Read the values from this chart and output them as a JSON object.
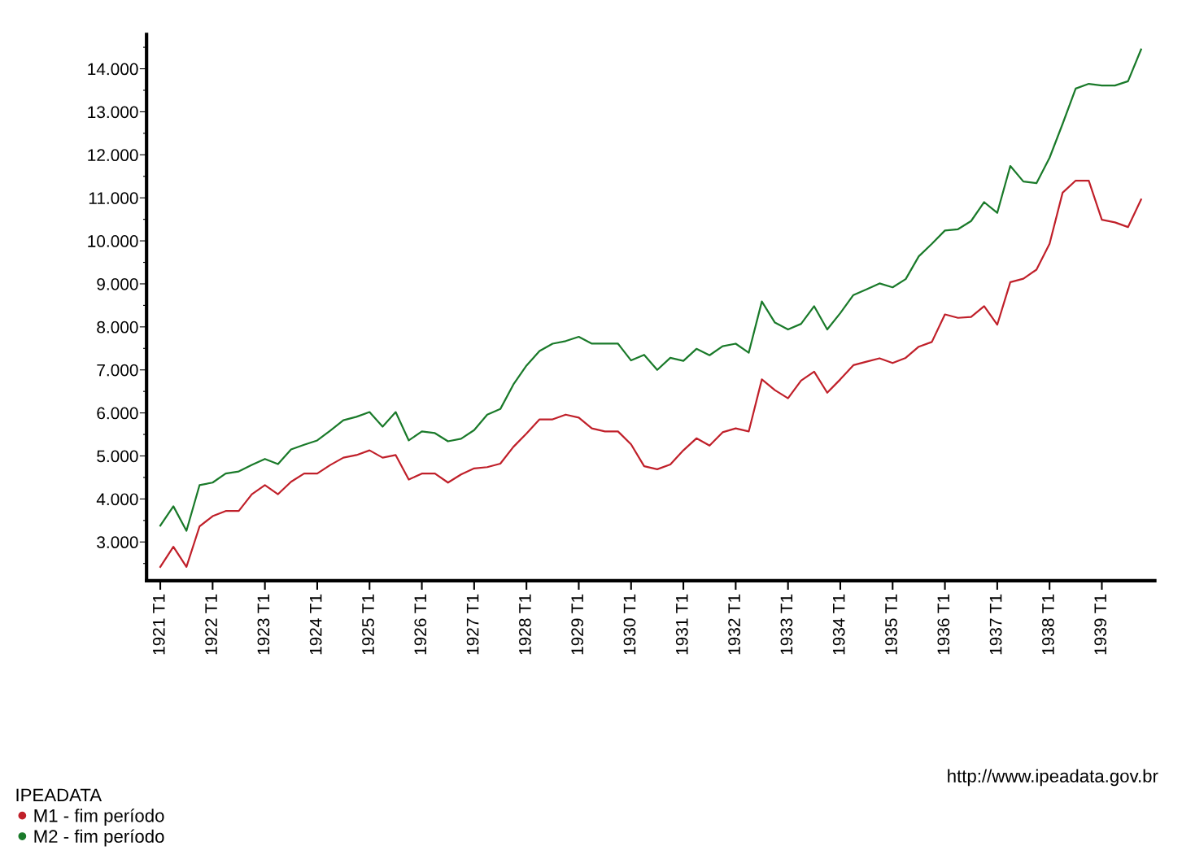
{
  "chart_data": {
    "type": "line",
    "categories": [
      "1921 T1",
      null,
      null,
      null,
      "1922 T1",
      null,
      null,
      null,
      "1923 T1",
      null,
      null,
      null,
      "1924 T1",
      null,
      null,
      null,
      "1925 T1",
      null,
      null,
      null,
      "1926 T1",
      null,
      null,
      null,
      "1927 T1",
      null,
      null,
      null,
      "1928 T1",
      null,
      null,
      null,
      "1929 T1",
      null,
      null,
      null,
      "1930 T1",
      null,
      null,
      null,
      "1931 T1",
      null,
      null,
      null,
      "1932 T1",
      null,
      null,
      null,
      "1933 T1",
      null,
      null,
      null,
      "1934 T1",
      null,
      null,
      null,
      "1935 T1",
      null,
      null,
      null,
      "1936 T1",
      null,
      null,
      null,
      "1937 T1",
      null,
      null,
      null,
      "1938 T1",
      null,
      null,
      null,
      "1939 T1",
      null,
      null,
      null
    ],
    "series": [
      {
        "name": "M1 - fim período",
        "color": "#c0202a",
        "values": [
          2420,
          2890,
          2420,
          3360,
          3600,
          3720,
          3720,
          4110,
          4320,
          4110,
          4400,
          4590,
          4590,
          4790,
          4960,
          5020,
          5130,
          4960,
          5020,
          4450,
          4590,
          4590,
          4380,
          4570,
          4710,
          4740,
          4820,
          5210,
          5520,
          5850,
          5850,
          5960,
          5890,
          5640,
          5570,
          5570,
          5270,
          4760,
          4690,
          4800,
          5130,
          5410,
          5240,
          5550,
          5640,
          5570,
          6780,
          6530,
          6340,
          6750,
          6960,
          6470,
          6780,
          7110,
          7190,
          7270,
          7160,
          7280,
          7540,
          7650,
          8290,
          8210,
          8230,
          8480,
          8050,
          9040,
          9120,
          9330,
          9930,
          11120,
          11400,
          11400,
          10490,
          10430,
          10320,
          10960
        ]
      },
      {
        "name": "M2 - fim período",
        "color": "#1a7a2a",
        "values": [
          3380,
          3830,
          3260,
          4320,
          4380,
          4590,
          4640,
          4790,
          4930,
          4810,
          5150,
          5260,
          5360,
          5590,
          5830,
          5910,
          6020,
          5680,
          6020,
          5360,
          5570,
          5530,
          5340,
          5400,
          5600,
          5960,
          6090,
          6660,
          7100,
          7440,
          7610,
          7670,
          7770,
          7610,
          7610,
          7610,
          7220,
          7350,
          7000,
          7280,
          7210,
          7490,
          7340,
          7550,
          7610,
          7400,
          8590,
          8100,
          7940,
          8070,
          8480,
          7940,
          8320,
          8740,
          8870,
          9010,
          8920,
          9110,
          9640,
          9930,
          10240,
          10270,
          10460,
          10900,
          10650,
          11740,
          11380,
          11340,
          11930,
          12720,
          13540,
          13650,
          13610,
          13610,
          13710,
          14450
        ]
      }
    ],
    "ylim": [
      2100,
      14800
    ],
    "yticks": [
      {
        "value": 2500,
        "label": null
      },
      {
        "value": 3000,
        "label": "3.000"
      },
      {
        "value": 3500,
        "label": null
      },
      {
        "value": 4000,
        "label": "4.000"
      },
      {
        "value": 4500,
        "label": null
      },
      {
        "value": 5000,
        "label": "5.000"
      },
      {
        "value": 5500,
        "label": null
      },
      {
        "value": 6000,
        "label": "6.000"
      },
      {
        "value": 6500,
        "label": null
      },
      {
        "value": 7000,
        "label": "7.000"
      },
      {
        "value": 7500,
        "label": null
      },
      {
        "value": 8000,
        "label": "8.000"
      },
      {
        "value": 8500,
        "label": null
      },
      {
        "value": 9000,
        "label": "9.000"
      },
      {
        "value": 9500,
        "label": null
      },
      {
        "value": 10000,
        "label": "10.000"
      },
      {
        "value": 10500,
        "label": null
      },
      {
        "value": 11000,
        "label": "11.000"
      },
      {
        "value": 11500,
        "label": null
      },
      {
        "value": 12000,
        "label": "12.000"
      },
      {
        "value": 12500,
        "label": null
      },
      {
        "value": 13000,
        "label": "13.000"
      },
      {
        "value": 13500,
        "label": null
      },
      {
        "value": 14000,
        "label": "14.000"
      },
      {
        "value": 14500,
        "label": null
      }
    ],
    "legend": "bottom left",
    "legend_title": "IPEADATA",
    "grid": false,
    "marker": "none",
    "annotations": [
      "http://www.ipeadata.gov.br"
    ]
  }
}
